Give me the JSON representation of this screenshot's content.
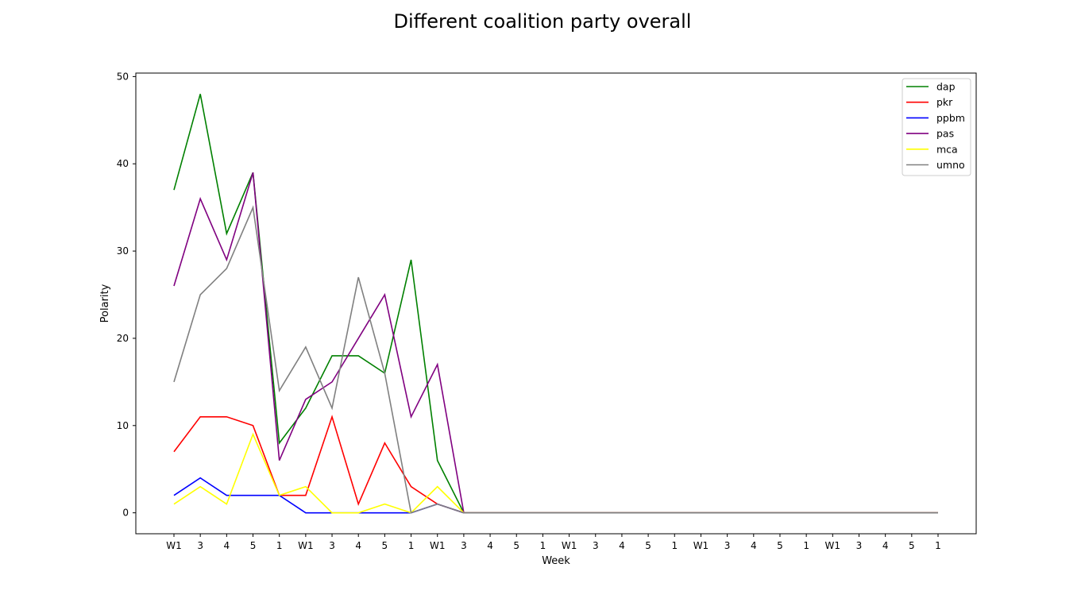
{
  "chart_data": {
    "type": "line",
    "title": "Different coalition party overall",
    "xlabel": "Week",
    "ylabel": "Polarity",
    "categories": [
      "W1",
      "3",
      "4",
      "5",
      "1",
      "W1",
      "3",
      "4",
      "5",
      "1",
      "W1",
      "3",
      "4",
      "5",
      "1",
      "W1",
      "3",
      "4",
      "5",
      "1",
      "W1",
      "3",
      "4",
      "5",
      "1",
      "W1",
      "3",
      "4",
      "5",
      "1"
    ],
    "ylim": [
      -2.4,
      50.4
    ],
    "yticks": [
      0,
      10,
      20,
      30,
      40,
      50
    ],
    "grid": false,
    "legend_position": "top-right",
    "series": [
      {
        "name": "dap",
        "color": "#008000",
        "values": [
          37,
          48,
          32,
          39,
          8,
          12,
          18,
          18,
          16,
          29,
          6,
          0,
          0,
          0,
          0,
          0,
          0,
          0,
          0,
          0,
          0,
          0,
          0,
          0,
          0,
          0,
          0,
          0,
          0,
          0
        ]
      },
      {
        "name": "pkr",
        "color": "#ff0000",
        "values": [
          7,
          11,
          11,
          10,
          2,
          2,
          11,
          1,
          8,
          3,
          1,
          0,
          0,
          0,
          0,
          0,
          0,
          0,
          0,
          0,
          0,
          0,
          0,
          0,
          0,
          0,
          0,
          0,
          0,
          0
        ]
      },
      {
        "name": "ppbm",
        "color": "#0000ff",
        "values": [
          2,
          4,
          2,
          2,
          2,
          0,
          0,
          0,
          0,
          0,
          1,
          0,
          0,
          0,
          0,
          0,
          0,
          0,
          0,
          0,
          0,
          0,
          0,
          0,
          0,
          0,
          0,
          0,
          0,
          0
        ]
      },
      {
        "name": "pas",
        "color": "#800080",
        "values": [
          26,
          36,
          29,
          39,
          6,
          13,
          15,
          20,
          25,
          11,
          17,
          0,
          0,
          0,
          0,
          0,
          0,
          0,
          0,
          0,
          0,
          0,
          0,
          0,
          0,
          0,
          0,
          0,
          0,
          0
        ]
      },
      {
        "name": "mca",
        "color": "#ffff00",
        "values": [
          1,
          3,
          1,
          9,
          2,
          3,
          0,
          0,
          1,
          0,
          3,
          0,
          0,
          0,
          0,
          0,
          0,
          0,
          0,
          0,
          0,
          0,
          0,
          0,
          0,
          0,
          0,
          0,
          0,
          0
        ]
      },
      {
        "name": "umno",
        "color": "#808080",
        "values": [
          15,
          25,
          28,
          35,
          14,
          19,
          12,
          27,
          16,
          0,
          1,
          0,
          0,
          0,
          0,
          0,
          0,
          0,
          0,
          0,
          0,
          0,
          0,
          0,
          0,
          0,
          0,
          0,
          0,
          0
        ]
      }
    ]
  }
}
